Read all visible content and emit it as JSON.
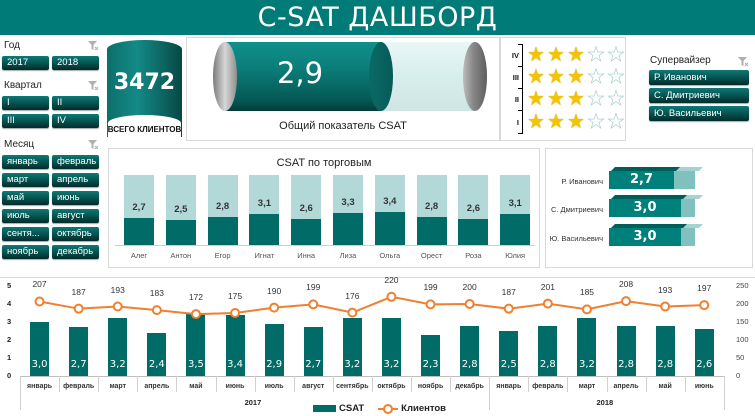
{
  "header": {
    "title": "C-SAT ДАШБОРД"
  },
  "filters": {
    "year": {
      "label": "Год",
      "options": [
        "2017",
        "2018"
      ]
    },
    "quarter": {
      "label": "Квартал",
      "options": [
        "I",
        "II",
        "III",
        "IV"
      ]
    },
    "month": {
      "label": "Месяц",
      "options": [
        "январь",
        "февраль",
        "март",
        "апрель",
        "май",
        "июнь",
        "июль",
        "август",
        "сентя...",
        "октябрь",
        "ноябрь",
        "декабрь"
      ]
    },
    "supervisor": {
      "label": "Супервайзер",
      "options": [
        "Р. Иванович",
        "С. Дмитриевич",
        "Ю. Васильевич"
      ]
    }
  },
  "total_clients": {
    "value": "3472",
    "label": "ВСЕГО КЛИЕНТОВ"
  },
  "overall_csat": {
    "value": "2,9",
    "caption": "Общий показатель CSAT",
    "max": 5
  },
  "quarter_stars": [
    {
      "quarter": "IV",
      "stars": 3
    },
    {
      "quarter": "III",
      "stars": 3
    },
    {
      "quarter": "II",
      "stars": 3
    },
    {
      "quarter": "I",
      "stars": 3
    }
  ],
  "colors": {
    "brand": "#007b77",
    "bar_dark": "#006b67",
    "bar_light": "#b2d9d8",
    "line": "#f07f30",
    "star": "#f5c400"
  },
  "chart_data": [
    {
      "type": "bar",
      "title": "CSAT по торговым",
      "categories": [
        "Алег",
        "Антон",
        "Егор",
        "Игнат",
        "Инна",
        "Лиза",
        "Ольга",
        "Орест",
        "Роза",
        "Юлия"
      ],
      "values": [
        2.7,
        2.5,
        2.8,
        3.1,
        2.6,
        3.3,
        3.4,
        2.8,
        2.6,
        3.1
      ],
      "labels": [
        "2,7",
        "2,5",
        "2,8",
        "3,1",
        "2,6",
        "3,3",
        "3,4",
        "2,8",
        "2,6",
        "3,1"
      ],
      "ylim": [
        0,
        5
      ],
      "xlabel": "",
      "ylabel": ""
    },
    {
      "type": "bar",
      "orientation": "horizontal",
      "title": "",
      "categories": [
        "Р. Иванович",
        "С. Дмитриевич",
        "Ю. Васильевич"
      ],
      "values": [
        2.7,
        3.0,
        3.0
      ],
      "labels": [
        "2,7",
        "3,0",
        "3,0"
      ],
      "xlim": [
        0,
        5
      ]
    },
    {
      "type": "bar+line",
      "title": "",
      "categories": [
        "январь",
        "февраль",
        "март",
        "апрель",
        "май",
        "июнь",
        "июль",
        "август",
        "сентябрь",
        "октябрь",
        "ноябрь",
        "декабрь",
        "январь",
        "февраль",
        "март",
        "апрель",
        "май",
        "июнь"
      ],
      "groups": [
        {
          "label": "2017",
          "span": 12
        },
        {
          "label": "2018",
          "span": 6
        }
      ],
      "series": [
        {
          "name": "CSAT",
          "type": "bar",
          "axis": "left",
          "values": [
            3.0,
            2.7,
            3.2,
            2.4,
            3.5,
            3.4,
            2.9,
            2.7,
            3.2,
            3.2,
            2.3,
            2.8,
            2.5,
            2.8,
            3.2,
            2.8,
            2.8,
            2.6
          ],
          "labels": [
            "3,0",
            "2,7",
            "3,2",
            "2,4",
            "3,5",
            "3,4",
            "2,9",
            "2,7",
            "3,2",
            "3,2",
            "2,3",
            "2,8",
            "2,5",
            "2,8",
            "3,2",
            "2,8",
            "2,8",
            "2,6"
          ]
        },
        {
          "name": "Клиентов",
          "type": "line",
          "axis": "right",
          "values": [
            207,
            187,
            193,
            183,
            172,
            175,
            190,
            199,
            176,
            220,
            199,
            200,
            187,
            201,
            185,
            208,
            193,
            197
          ]
        }
      ],
      "y_left": {
        "ticks": [
          "0",
          "1",
          "2",
          "3",
          "4",
          "5"
        ],
        "range": [
          0,
          5
        ]
      },
      "y_right": {
        "ticks": [
          "0",
          "50",
          "100",
          "150",
          "200",
          "250"
        ],
        "range": [
          0,
          250
        ]
      },
      "legend": [
        "CSAT",
        "Клиентов"
      ],
      "legend_position": "bottom"
    }
  ]
}
